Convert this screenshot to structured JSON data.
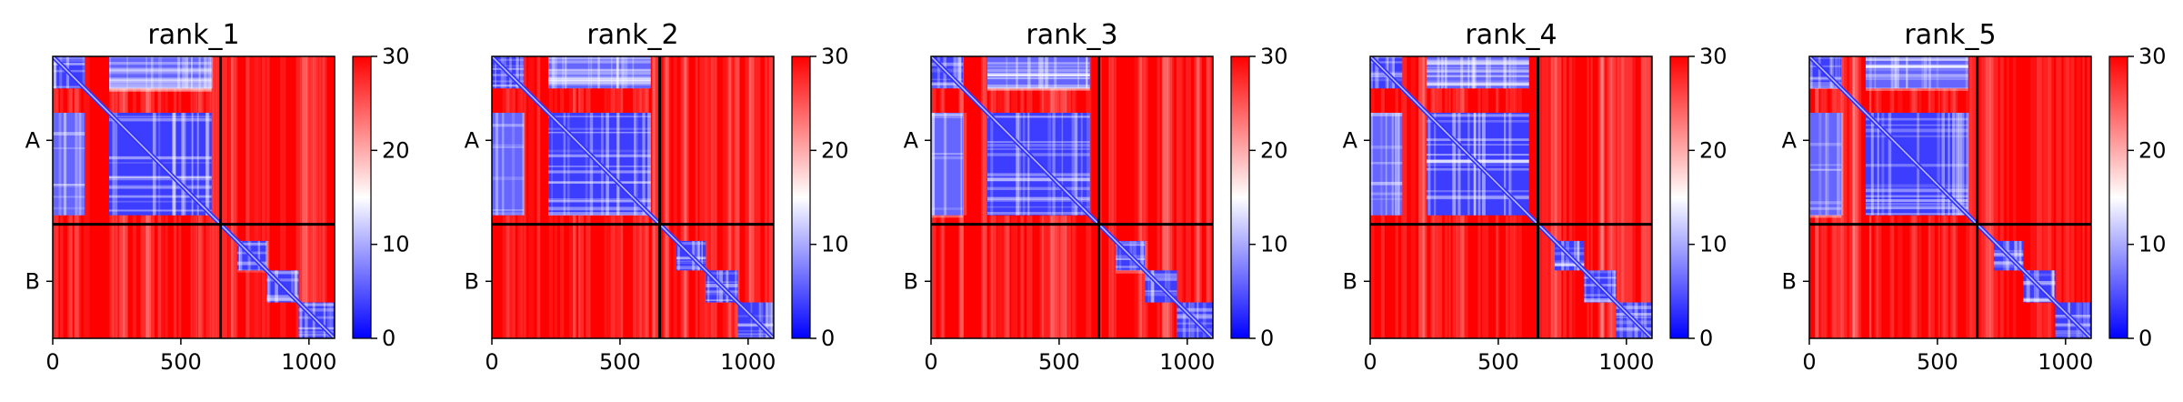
{
  "chart_data": [
    {
      "type": "heatmap",
      "title": "rank_1",
      "xticks": [
        "0",
        "500",
        "1000"
      ],
      "yticks": [
        "A",
        "B"
      ],
      "xlim": [
        0,
        1100
      ],
      "chains": [
        {
          "name": "A",
          "start": 0,
          "end": 655
        },
        {
          "name": "B",
          "start": 655,
          "end": 1100
        }
      ],
      "colorbar": {
        "min": 0,
        "max": 30,
        "ticks": [
          "0",
          "10",
          "20",
          "30"
        ],
        "colors": [
          "#0000ff",
          "#ffffff",
          "#ff0000"
        ]
      },
      "low_blocks": [
        [
          0,
          125
        ],
        [
          220,
          620
        ],
        [
          720,
          835
        ],
        [
          835,
          960
        ],
        [
          960,
          1100
        ]
      ]
    },
    {
      "type": "heatmap",
      "title": "rank_2",
      "xticks": [
        "0",
        "500",
        "1000"
      ],
      "yticks": [
        "A",
        "B"
      ],
      "xlim": [
        0,
        1100
      ],
      "chains": [
        {
          "name": "A",
          "start": 0,
          "end": 655
        },
        {
          "name": "B",
          "start": 655,
          "end": 1100
        }
      ],
      "colorbar": {
        "min": 0,
        "max": 30,
        "ticks": [
          "0",
          "10",
          "20",
          "30"
        ],
        "colors": [
          "#0000ff",
          "#ffffff",
          "#ff0000"
        ]
      },
      "low_blocks": [
        [
          0,
          125
        ],
        [
          220,
          620
        ],
        [
          720,
          835
        ],
        [
          835,
          960
        ],
        [
          960,
          1100
        ]
      ]
    },
    {
      "type": "heatmap",
      "title": "rank_3",
      "xticks": [
        "0",
        "500",
        "1000"
      ],
      "yticks": [
        "A",
        "B"
      ],
      "xlim": [
        0,
        1100
      ],
      "chains": [
        {
          "name": "A",
          "start": 0,
          "end": 655
        },
        {
          "name": "B",
          "start": 655,
          "end": 1100
        }
      ],
      "colorbar": {
        "min": 0,
        "max": 30,
        "ticks": [
          "0",
          "10",
          "20",
          "30"
        ],
        "colors": [
          "#0000ff",
          "#ffffff",
          "#ff0000"
        ]
      },
      "low_blocks": [
        [
          0,
          125
        ],
        [
          220,
          620
        ],
        [
          720,
          835
        ],
        [
          835,
          960
        ],
        [
          960,
          1100
        ]
      ]
    },
    {
      "type": "heatmap",
      "title": "rank_4",
      "xticks": [
        "0",
        "500",
        "1000"
      ],
      "yticks": [
        "A",
        "B"
      ],
      "xlim": [
        0,
        1100
      ],
      "chains": [
        {
          "name": "A",
          "start": 0,
          "end": 655
        },
        {
          "name": "B",
          "start": 655,
          "end": 1100
        }
      ],
      "colorbar": {
        "min": 0,
        "max": 30,
        "ticks": [
          "0",
          "10",
          "20",
          "30"
        ],
        "colors": [
          "#0000ff",
          "#ffffff",
          "#ff0000"
        ]
      },
      "low_blocks": [
        [
          0,
          125
        ],
        [
          220,
          620
        ],
        [
          720,
          835
        ],
        [
          835,
          960
        ],
        [
          960,
          1100
        ]
      ]
    },
    {
      "type": "heatmap",
      "title": "rank_5",
      "xticks": [
        "0",
        "500",
        "1000"
      ],
      "yticks": [
        "A",
        "B"
      ],
      "xlim": [
        0,
        1100
      ],
      "chains": [
        {
          "name": "A",
          "start": 0,
          "end": 655
        },
        {
          "name": "B",
          "start": 655,
          "end": 1100
        }
      ],
      "colorbar": {
        "min": 0,
        "max": 30,
        "ticks": [
          "0",
          "10",
          "20",
          "30"
        ],
        "colors": [
          "#0000ff",
          "#ffffff",
          "#ff0000"
        ]
      },
      "low_blocks": [
        [
          0,
          125
        ],
        [
          220,
          620
        ],
        [
          720,
          835
        ],
        [
          835,
          960
        ],
        [
          960,
          1100
        ]
      ]
    }
  ]
}
